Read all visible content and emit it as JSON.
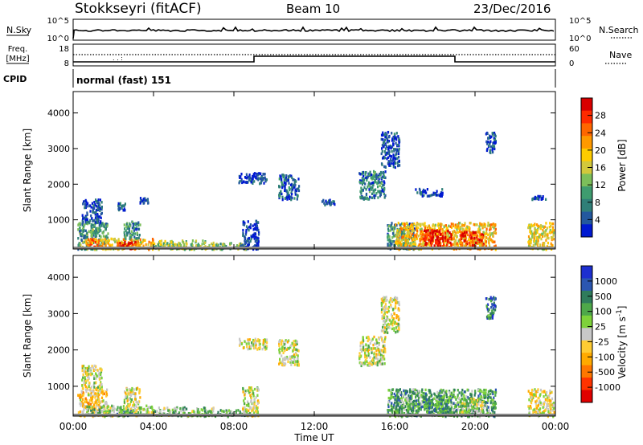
{
  "header": {
    "station": "Stokkseyri (fitACF)",
    "beam": "Beam 10",
    "date": "23/Dec/2016"
  },
  "strip_labels": {
    "nsky": "N.Sky",
    "nsearch": "N.Search",
    "freq_top": "Freq.",
    "freq_unit": "[MHz]",
    "nave": "Nave",
    "cpid": "CPID",
    "cpid_value": "normal (fast) 151",
    "nsky_ticks": [
      "10^5",
      "10^0"
    ],
    "nsearch_ticks": [
      "10^5",
      "10^0"
    ],
    "freq_ticks": [
      "18",
      "8"
    ],
    "nave_ticks": [
      "60",
      "0"
    ]
  },
  "chart_data": [
    {
      "type": "heatmap",
      "name": "power",
      "xlabel": "",
      "ylabel": "Slant Range [km]",
      "xlim": [
        0,
        24
      ],
      "ylim": [
        180,
        4600
      ],
      "x_ticks": [
        "00:00",
        "04:00",
        "08:00",
        "12:00",
        "16:00",
        "20:00",
        "00:00"
      ],
      "y_ticks": [
        1000,
        2000,
        3000,
        4000
      ],
      "colorbar": {
        "label": "Power [dB]",
        "ticks": [
          "28",
          "24",
          "20",
          "16",
          "12",
          "8",
          "4"
        ],
        "colors": [
          "#d90000",
          "#ff2a00",
          "#ff6600",
          "#ff9900",
          "#ffcc00",
          "#d2c83c",
          "#7cbf5a",
          "#3f9c6f",
          "#2f7f78",
          "#23589e",
          "#0019d1"
        ]
      },
      "blobs": [
        {
          "t0": 0.2,
          "t1": 1.7,
          "r0": 200,
          "r1": 950,
          "level": 0.3
        },
        {
          "t0": 0.6,
          "t1": 1.5,
          "r0": 250,
          "r1": 500,
          "level": 0.7
        },
        {
          "t0": 1.4,
          "t1": 4.0,
          "r0": 200,
          "r1": 500,
          "level": 0.6
        },
        {
          "t0": 2.1,
          "t1": 3.1,
          "r0": 220,
          "r1": 420,
          "level": 0.95
        },
        {
          "t0": 2.5,
          "t1": 3.3,
          "r0": 500,
          "r1": 1000,
          "level": 0.25
        },
        {
          "t0": 4.0,
          "t1": 7.0,
          "r0": 200,
          "r1": 450,
          "level": 0.45
        },
        {
          "t0": 7.0,
          "t1": 8.6,
          "r0": 200,
          "r1": 380,
          "level": 0.35
        },
        {
          "t0": 0.4,
          "t1": 1.4,
          "r0": 950,
          "r1": 1600,
          "level": 0.1
        },
        {
          "t0": 2.2,
          "t1": 2.6,
          "r0": 1300,
          "r1": 1500,
          "level": 0.15
        },
        {
          "t0": 3.3,
          "t1": 3.7,
          "r0": 1500,
          "r1": 1650,
          "level": 0.1
        },
        {
          "t0": 8.4,
          "t1": 9.2,
          "r0": 200,
          "r1": 1000,
          "level": 0.05
        },
        {
          "t0": 8.2,
          "t1": 9.6,
          "r0": 2050,
          "r1": 2350,
          "level": 0.1
        },
        {
          "t0": 10.2,
          "t1": 11.2,
          "r0": 1600,
          "r1": 2300,
          "level": 0.15
        },
        {
          "t0": 12.3,
          "t1": 13.0,
          "r0": 1450,
          "r1": 1600,
          "level": 0.1
        },
        {
          "t0": 14.2,
          "t1": 15.5,
          "r0": 1600,
          "r1": 2400,
          "level": 0.2
        },
        {
          "t0": 15.3,
          "t1": 16.2,
          "r0": 2500,
          "r1": 3500,
          "level": 0.1
        },
        {
          "t0": 15.6,
          "t1": 17.0,
          "r0": 200,
          "r1": 950,
          "level": 0.25
        },
        {
          "t0": 16.0,
          "t1": 21.0,
          "r0": 200,
          "r1": 950,
          "level": 0.6
        },
        {
          "t0": 17.4,
          "t1": 18.8,
          "r0": 300,
          "r1": 750,
          "level": 0.95
        },
        {
          "t0": 19.2,
          "t1": 20.4,
          "r0": 300,
          "r1": 700,
          "level": 0.85
        },
        {
          "t0": 17.0,
          "t1": 18.4,
          "r0": 1700,
          "r1": 1900,
          "level": 0.1
        },
        {
          "t0": 20.5,
          "t1": 21.0,
          "r0": 2900,
          "r1": 3500,
          "level": 0.1
        },
        {
          "t0": 22.6,
          "t1": 23.9,
          "r0": 200,
          "r1": 950,
          "level": 0.55
        },
        {
          "t0": 22.8,
          "t1": 23.5,
          "r0": 1600,
          "r1": 1700,
          "level": 0.1
        }
      ]
    },
    {
      "type": "heatmap",
      "name": "velocity",
      "xlabel": "Time UT",
      "ylabel": "Slant Range [km]",
      "xlim": [
        0,
        24
      ],
      "ylim": [
        180,
        4600
      ],
      "x_ticks": [
        "00:00",
        "04:00",
        "08:00",
        "12:00",
        "16:00",
        "20:00",
        "00:00"
      ],
      "y_ticks": [
        1000,
        2000,
        3000,
        4000
      ],
      "colorbar": {
        "label": "Velocity [m s^-1]",
        "ticks": [
          "1000",
          "500",
          "100",
          "25",
          "-25",
          "-100",
          "-500",
          "-1000"
        ],
        "colors": [
          "#1d2fd0",
          "#2b56b0",
          "#2f7c5c",
          "#4ea84a",
          "#7ed23a",
          "#c8c8c8",
          "#ffcc33",
          "#ffaa00",
          "#ff7700",
          "#ff3300",
          "#e00000"
        ]
      },
      "blobs": [
        {
          "t0": 0.2,
          "t1": 1.7,
          "r0": 200,
          "r1": 950,
          "level": 0.4
        },
        {
          "t0": 0.6,
          "t1": 1.5,
          "r0": 250,
          "r1": 500,
          "level": 0.62
        },
        {
          "t0": 1.4,
          "t1": 4.0,
          "r0": 200,
          "r1": 500,
          "level": 0.55
        },
        {
          "t0": 2.1,
          "t1": 3.1,
          "r0": 220,
          "r1": 420,
          "level": 0.7
        },
        {
          "t0": 2.5,
          "t1": 3.3,
          "r0": 500,
          "r1": 1000,
          "level": 0.5
        },
        {
          "t0": 4.0,
          "t1": 7.0,
          "r0": 200,
          "r1": 450,
          "level": 0.6
        },
        {
          "t0": 7.0,
          "t1": 8.6,
          "r0": 200,
          "r1": 380,
          "level": 0.65
        },
        {
          "t0": 0.4,
          "t1": 1.4,
          "r0": 950,
          "r1": 1600,
          "level": 0.5
        },
        {
          "t0": 8.4,
          "t1": 9.2,
          "r0": 200,
          "r1": 1000,
          "level": 0.5
        },
        {
          "t0": 8.2,
          "t1": 9.6,
          "r0": 2050,
          "r1": 2350,
          "level": 0.5
        },
        {
          "t0": 10.2,
          "t1": 11.2,
          "r0": 1600,
          "r1": 2300,
          "level": 0.5
        },
        {
          "t0": 14.2,
          "t1": 15.5,
          "r0": 1600,
          "r1": 2400,
          "level": 0.5
        },
        {
          "t0": 15.3,
          "t1": 16.2,
          "r0": 2500,
          "r1": 3500,
          "level": 0.5
        },
        {
          "t0": 15.6,
          "t1": 17.0,
          "r0": 200,
          "r1": 950,
          "level": 0.7
        },
        {
          "t0": 16.0,
          "t1": 21.0,
          "r0": 200,
          "r1": 950,
          "level": 0.68
        },
        {
          "t0": 17.4,
          "t1": 18.8,
          "r0": 300,
          "r1": 750,
          "level": 0.72
        },
        {
          "t0": 19.2,
          "t1": 20.4,
          "r0": 300,
          "r1": 700,
          "level": 0.55
        },
        {
          "t0": 20.5,
          "t1": 21.0,
          "r0": 2900,
          "r1": 3500,
          "level": 0.8
        },
        {
          "t0": 22.6,
          "t1": 23.9,
          "r0": 200,
          "r1": 950,
          "level": 0.45
        }
      ]
    }
  ]
}
